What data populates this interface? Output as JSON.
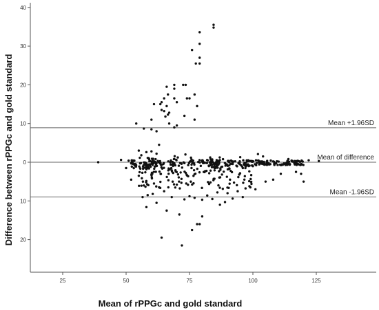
{
  "chart_data": {
    "type": "scatter",
    "title": "",
    "xlabel": "Mean of rPPGc and gold standard",
    "ylabel": "Difference between rPPGc and gold standard",
    "xlim": [
      10,
      145
    ],
    "ylim": [
      -26,
      41
    ],
    "xticks": [
      25,
      50,
      75,
      100,
      125
    ],
    "yticks": [
      40,
      30,
      20,
      10,
      0,
      -10,
      -20
    ],
    "ytick_labels": [
      "40",
      "30",
      "20",
      "10",
      "0",
      "10",
      "20"
    ],
    "grid": false,
    "reference_lines": [
      {
        "name": "Mean +1.96SD",
        "y": 8.9
      },
      {
        "name": "Mean of difference",
        "y": 0
      },
      {
        "name": "Mean -1.96SD",
        "y": -9.0
      }
    ],
    "points_upper": [
      [
        84.5,
        35.5
      ],
      [
        84.5,
        34.8
      ],
      [
        79,
        33.6
      ],
      [
        79,
        30.6
      ],
      [
        76,
        29
      ],
      [
        79,
        27
      ],
      [
        77.5,
        25.5
      ],
      [
        79,
        25.5
      ],
      [
        69,
        20
      ],
      [
        72.5,
        20
      ],
      [
        73.5,
        20
      ],
      [
        66,
        19.5
      ],
      [
        69,
        19
      ],
      [
        66.5,
        17.5
      ],
      [
        77,
        17.5
      ],
      [
        65,
        16.5
      ],
      [
        69,
        16.5
      ],
      [
        74,
        16.5
      ],
      [
        75,
        16.5
      ],
      [
        64,
        15.5
      ],
      [
        70,
        15.5
      ],
      [
        61,
        15
      ],
      [
        63.5,
        15
      ],
      [
        66,
        14.5
      ],
      [
        78,
        14.5
      ],
      [
        64,
        13.5
      ],
      [
        65,
        13.2
      ],
      [
        67,
        12.8
      ],
      [
        66.5,
        12.3
      ],
      [
        73,
        12
      ],
      [
        65.5,
        11.8
      ],
      [
        60,
        11
      ],
      [
        77,
        11
      ],
      [
        67,
        10
      ],
      [
        54,
        10
      ],
      [
        70,
        9.5
      ],
      [
        69,
        9
      ],
      [
        57,
        8.7
      ],
      [
        60,
        8.5
      ],
      [
        62,
        8
      ]
    ],
    "points_lower": [
      [
        58,
        -11.6
      ],
      [
        62,
        -10.5
      ],
      [
        73,
        -9.6
      ],
      [
        87,
        -11
      ],
      [
        89,
        -10.3
      ],
      [
        92,
        -9.4
      ],
      [
        80,
        -9.7
      ],
      [
        68,
        -9
      ],
      [
        75,
        -8.8
      ],
      [
        64,
        -19.5
      ],
      [
        72,
        -21.5
      ],
      [
        76,
        -17.5
      ],
      [
        78,
        -16
      ],
      [
        79,
        -16
      ],
      [
        80,
        -14
      ],
      [
        71,
        -13.5
      ],
      [
        66,
        -12.5
      ],
      [
        96,
        -9
      ],
      [
        84,
        -9.5
      ],
      [
        77,
        -9.2
      ],
      [
        56.5,
        -9
      ],
      [
        60.5,
        -8.2
      ],
      [
        58.5,
        -8.5
      ],
      [
        101,
        -7
      ],
      [
        105,
        -5
      ],
      [
        108,
        -4.5
      ],
      [
        111,
        -3
      ],
      [
        99,
        -6.5
      ],
      [
        94,
        -7.5
      ],
      [
        90,
        -8
      ],
      [
        86,
        -7.8
      ],
      [
        82,
        -8.6
      ],
      [
        65,
        -7.5
      ],
      [
        57,
        -6
      ],
      [
        61,
        -5.5
      ],
      [
        63,
        -6.5
      ],
      [
        70,
        -5.8
      ],
      [
        52,
        -4.5
      ],
      [
        55,
        -3.5
      ],
      [
        120,
        -5
      ],
      [
        119,
        -3
      ],
      [
        117,
        -2.5
      ]
    ],
    "points_isolated": [
      [
        39,
        0
      ],
      [
        48,
        0.6
      ],
      [
        50,
        -1.5
      ],
      [
        51,
        0.4
      ],
      [
        126,
        0.3
      ],
      [
        114,
        0.8
      ],
      [
        117,
        0.2
      ],
      [
        122,
        0.5
      ],
      [
        102,
        2.1
      ],
      [
        104,
        1.5
      ],
      [
        95,
        1.3
      ],
      [
        63,
        4.5
      ],
      [
        55,
        3
      ],
      [
        58,
        2.6
      ],
      [
        56,
        1.8
      ],
      [
        62,
        2.2
      ],
      [
        60,
        2.8
      ]
    ]
  }
}
